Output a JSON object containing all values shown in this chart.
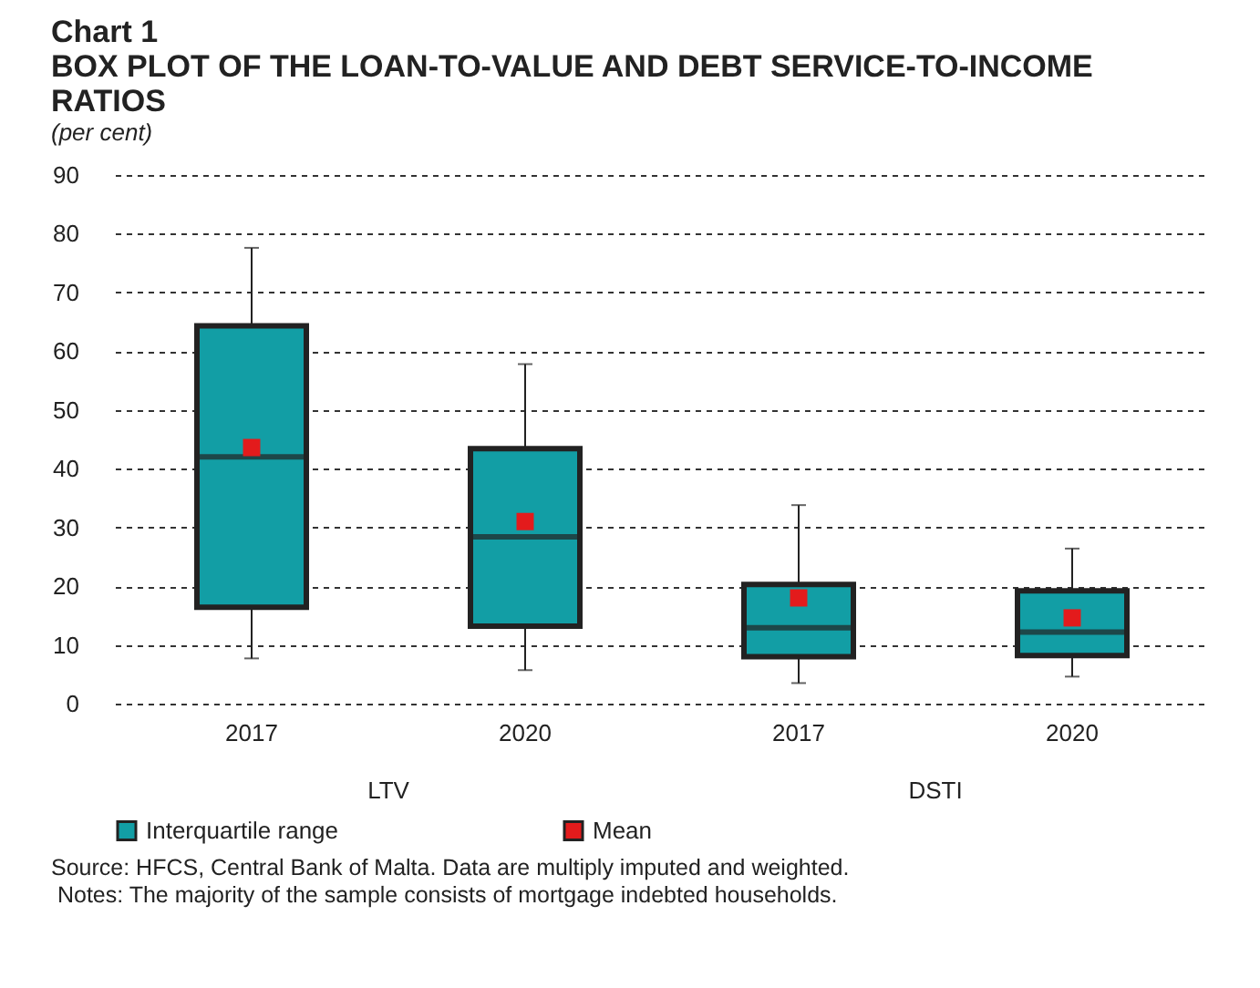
{
  "chart_data": {
    "type": "box",
    "title": "Chart 1",
    "subtitle": "BOX PLOT OF THE LOAN-TO-VALUE AND DEBT SERVICE-TO-INCOME RATIOS",
    "ylabel": "(per cent)",
    "categories": [
      "2017",
      "2020",
      "2017",
      "2020"
    ],
    "series": [
      {
        "name": "Interquartile range",
        "color": "#129ea5",
        "boxes": [
          {
            "low": 7.7,
            "q1": 16.4,
            "median": 42,
            "q3": 64.3,
            "high": 77.6
          },
          {
            "low": 5.7,
            "q1": 13.2,
            "median": 28.4,
            "q3": 43.4,
            "high": 57.8
          },
          {
            "low": 3.5,
            "q1": 8,
            "median": 12.9,
            "q3": 20.3,
            "high": 33.8
          },
          {
            "low": 4.6,
            "q1": 8.2,
            "median": 12.2,
            "q3": 19.2,
            "high": 26.4
          }
        ]
      },
      {
        "type": "scatter",
        "name": "Mean",
        "color": "#e31b1c",
        "values": [
          43.6,
          31,
          18,
          14.6
        ]
      }
    ],
    "ylim": [
      0,
      90
    ],
    "yticks": [
      0,
      10,
      20,
      30,
      40,
      50,
      60,
      70,
      80,
      90
    ],
    "grid": "y",
    "legend": "bottom",
    "marker": "square",
    "annotations": [
      "LTV",
      "DSTI",
      "Source: HFCS, Central Bank of Malta. Data are multiply imputed and weighted.",
      " Notes: The majority of the sample consists of mortgage indebted households."
    ]
  }
}
